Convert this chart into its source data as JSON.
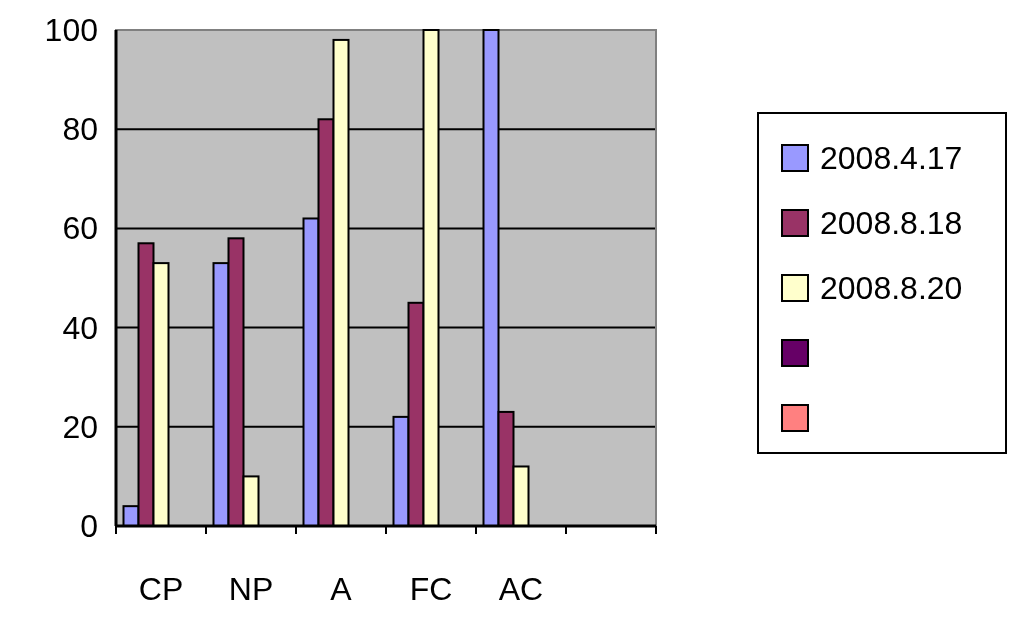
{
  "chart_data": {
    "type": "bar",
    "categories": [
      "CP",
      "NP",
      "A",
      "FC",
      "AC",
      null
    ],
    "series": [
      {
        "name": "2008.4.17",
        "color": "#9999ff",
        "values": [
          4,
          53,
          62,
          22,
          100,
          null
        ]
      },
      {
        "name": "2008.8.18",
        "color": "#993366",
        "values": [
          57,
          58,
          82,
          45,
          23,
          null
        ]
      },
      {
        "name": "2008.8.20",
        "color": "#ffffcc",
        "values": [
          53,
          10,
          98,
          100,
          12,
          null
        ]
      },
      {
        "color": "#660066",
        "values": [
          null,
          null,
          null,
          null,
          null,
          null
        ]
      },
      {
        "color": "#ff8080",
        "values": [
          null,
          null,
          null,
          null,
          null,
          null
        ]
      }
    ],
    "ylim": [
      0,
      100
    ],
    "yticks": [
      0,
      20,
      40,
      60,
      80,
      100
    ],
    "grid": "y",
    "legend": "right"
  }
}
